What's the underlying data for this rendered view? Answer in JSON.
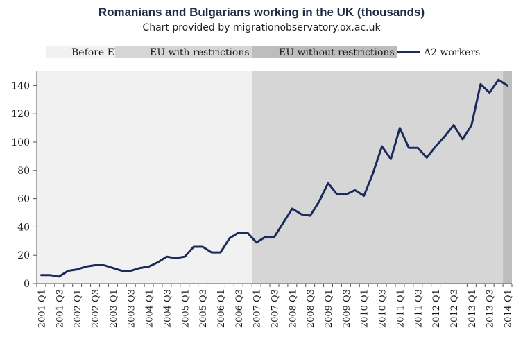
{
  "chart_data": {
    "type": "line",
    "title": "Romanians and Bulgarians working in the UK (thousands)",
    "subtitle": "Chart provided by migrationobservatory.ox.ac.uk",
    "xlabel": "",
    "ylabel": "",
    "ylim": [
      0,
      150
    ],
    "yticks": [
      0,
      20,
      40,
      60,
      80,
      100,
      120,
      140
    ],
    "grid": false,
    "legend_position": "top",
    "periods": [
      {
        "name": "Before EU",
        "start": "2001 Q1",
        "end": "2006 Q4",
        "color": "#f1f1f1"
      },
      {
        "name": "EU with restrictions",
        "start": "2007 Q1",
        "end": "2013 Q4",
        "color": "#d6d6d6"
      },
      {
        "name": "EU without restrictions",
        "start": "2014 Q1",
        "end": "2014 Q1",
        "color": "#bdbdbd"
      }
    ],
    "x": [
      "2001 Q1",
      "2001 Q2",
      "2001 Q3",
      "2001 Q4",
      "2002 Q1",
      "2002 Q2",
      "2002 Q3",
      "2002 Q4",
      "2003 Q1",
      "2003 Q2",
      "2003 Q3",
      "2003 Q4",
      "2004 Q1",
      "2004 Q2",
      "2004 Q3",
      "2004 Q4",
      "2005 Q1",
      "2005 Q2",
      "2005 Q3",
      "2005 Q4",
      "2006 Q1",
      "2006 Q2",
      "2006 Q3",
      "2006 Q4",
      "2007 Q1",
      "2007 Q2",
      "2007 Q3",
      "2007 Q4",
      "2008 Q1",
      "2008 Q2",
      "2008 Q3",
      "2008 Q4",
      "2009 Q1",
      "2009 Q2",
      "2009 Q3",
      "2009 Q4",
      "2010 Q1",
      "2010 Q2",
      "2010 Q3",
      "2010 Q4",
      "2011 Q1",
      "2011 Q2",
      "2011 Q3",
      "2011 Q4",
      "2012 Q1",
      "2012 Q2",
      "2012 Q3",
      "2012 Q4",
      "2013 Q1",
      "2013 Q2",
      "2013 Q3",
      "2013 Q4",
      "2014 Q1"
    ],
    "x_tick_labels": [
      "2001 Q1",
      "2001 Q3",
      "2002 Q1",
      "2002 Q3",
      "2003 Q1",
      "2003 Q3",
      "2004 Q1",
      "2004 Q3",
      "2005 Q1",
      "2005 Q3",
      "2006 Q1",
      "2006 Q3",
      "2007 Q1",
      "2007 Q3",
      "2008 Q1",
      "2008 Q3",
      "2009 Q1",
      "2009 Q3",
      "2010 Q1",
      "2010 Q3",
      "2011 Q1",
      "2011 Q3",
      "2012 Q1",
      "2012 Q3",
      "2013 Q1",
      "2013 Q3",
      "2014 Q1"
    ],
    "series": [
      {
        "name": "A2 workers",
        "color": "#1a2a5a",
        "values": [
          6,
          6,
          5,
          9,
          10,
          12,
          13,
          13,
          11,
          9,
          9,
          11,
          12,
          15,
          19,
          18,
          19,
          26,
          26,
          22,
          22,
          32,
          36,
          36,
          29,
          33,
          33,
          43,
          53,
          49,
          48,
          58,
          71,
          63,
          63,
          66,
          62,
          78,
          97,
          88,
          110,
          96,
          96,
          89,
          97,
          104,
          112,
          102,
          112,
          141,
          135,
          144,
          140
        ]
      }
    ]
  }
}
